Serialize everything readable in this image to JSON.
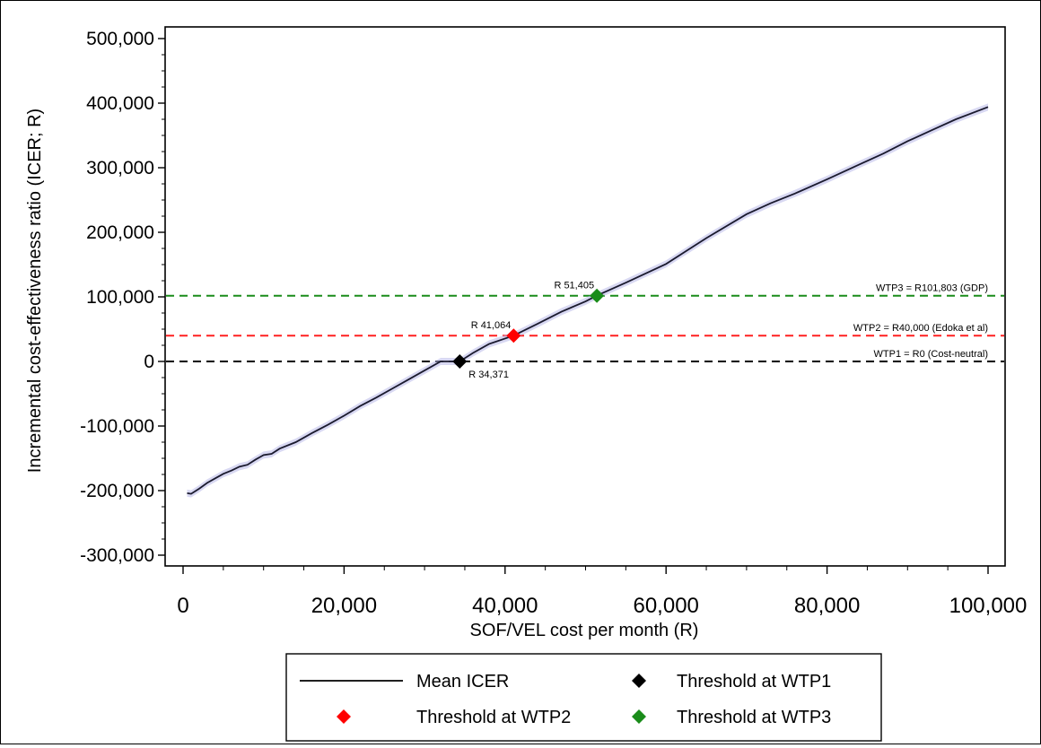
{
  "chart_data": {
    "type": "line",
    "xlabel": "SOF/VEL cost per month (R)",
    "ylabel": "Incremental cost-effectiveness ratio (ICER; R)",
    "xlim": [
      0,
      100000
    ],
    "ylim": [
      -300000,
      500000
    ],
    "x_ticks": [
      "0",
      "20,000",
      "40,000",
      "60,000",
      "80,000",
      "100,000"
    ],
    "y_ticks": [
      "500,000",
      "400,000",
      "300,000",
      "200,000",
      "100,000",
      "0",
      "-100,000",
      "-200,000",
      "-300,000"
    ],
    "grid": false,
    "series": [
      {
        "name": "Mean ICER",
        "color": "#1a1a2e",
        "band_color": "#b8b8e8",
        "x": [
          500,
          1000,
          2000,
          3000,
          4000,
          5000,
          6000,
          7000,
          8000,
          9000,
          10000,
          11000,
          12000,
          14000,
          16000,
          18000,
          20000,
          22000,
          24000,
          26000,
          28000,
          30000,
          32000,
          34371,
          36000,
          38000,
          41064,
          44000,
          47000,
          50000,
          51405,
          55000,
          60000,
          65000,
          70000,
          73000,
          76000,
          80000,
          84000,
          87000,
          90000,
          93000,
          96000,
          100000
        ],
        "y": [
          -204000,
          -205000,
          -197000,
          -188000,
          -181000,
          -174000,
          -169000,
          -163000,
          -160000,
          -152000,
          -145000,
          -143000,
          -135000,
          -125000,
          -111000,
          -98000,
          -84000,
          -69000,
          -56000,
          -42000,
          -28000,
          -14000,
          0,
          0,
          13000,
          27000,
          40000,
          58000,
          77000,
          93000,
          102000,
          122000,
          151000,
          191000,
          228000,
          245000,
          260000,
          282000,
          305000,
          322000,
          341000,
          358000,
          375000,
          394000
        ]
      }
    ],
    "thresholds": [
      {
        "name": "WTP1",
        "y": 0,
        "color": "#000000",
        "label": "WTP1 = R0 (Cost-neutral)"
      },
      {
        "name": "WTP2",
        "y": 40000,
        "color": "#ff2020",
        "label": "WTP2 = R40,000   (Edoka et al)"
      },
      {
        "name": "WTP3",
        "y": 101803,
        "color": "#1a8c1a",
        "label": "WTP3 = R101,803   (GDP)"
      }
    ],
    "points": [
      {
        "x": 34371,
        "y": 0,
        "color": "#000000",
        "label": "R 34,371",
        "label_pos": "below-right"
      },
      {
        "x": 41064,
        "y": 40000,
        "color": "#ff0000",
        "label": "R 41,064",
        "label_pos": "above-left"
      },
      {
        "x": 51405,
        "y": 101803,
        "color": "#1a8c1a",
        "label": "R 51,405",
        "label_pos": "above-left"
      }
    ],
    "legend": {
      "placement": "bottom",
      "items": [
        {
          "label": "Mean ICER",
          "kind": "line",
          "color": "#000000"
        },
        {
          "label": "Threshold at WTP1",
          "kind": "diamond",
          "color": "#000000"
        },
        {
          "label": "Threshold at WTP2",
          "kind": "diamond",
          "color": "#ff0000"
        },
        {
          "label": "Threshold at WTP3",
          "kind": "diamond",
          "color": "#1a8c1a"
        }
      ]
    }
  }
}
